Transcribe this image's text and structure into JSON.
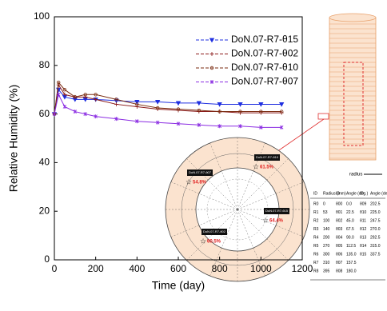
{
  "chart_data": {
    "type": "line",
    "x_label": "Time (day)",
    "y_label": "Relative Humidity (%)",
    "x": [
      0,
      20,
      50,
      100,
      150,
      200,
      300,
      400,
      500,
      600,
      700,
      800,
      900,
      1000,
      1100
    ],
    "series": [
      {
        "name": "DoN.07-R7-θ15",
        "color": "#1f2fe0",
        "marker": "triangle-down",
        "values": [
          60,
          70,
          67,
          66,
          66,
          66,
          65.5,
          65,
          65,
          64.5,
          64.5,
          64,
          64,
          64,
          64
        ]
      },
      {
        "name": "DoN.07-R7-θ02",
        "color": "#8b1a1a",
        "marker": "plus",
        "values": [
          60,
          72,
          68,
          67,
          67,
          66,
          64,
          63,
          62,
          61.5,
          61,
          61,
          60.5,
          60.5,
          60.5
        ]
      },
      {
        "name": "DoN.07-R7-θ10",
        "color": "#7a2b10",
        "marker": "circle",
        "values": [
          60,
          73,
          70,
          67,
          68,
          68,
          66,
          64,
          62.5,
          62,
          61.5,
          61,
          61,
          61,
          61
        ]
      },
      {
        "name": "DoN.07-R7-θ07",
        "color": "#8a2be2",
        "marker": "star",
        "values": [
          60,
          68,
          63,
          61,
          60,
          59,
          58,
          57,
          56.5,
          56,
          55.5,
          55,
          55,
          54.5,
          54.5
        ]
      }
    ],
    "xlim": [
      0,
      1200
    ],
    "xticks": [
      0,
      200,
      400,
      600,
      800,
      1000,
      1200
    ],
    "ylim": [
      0,
      100
    ],
    "yticks": [
      0,
      20,
      40,
      60,
      80,
      100
    ],
    "legend": "top-right"
  },
  "inset": {
    "annotations": [
      {
        "label": "DoN.07-R7-θ10",
        "value": "61.5%"
      },
      {
        "label": "DoN.07-R7-θ07",
        "value": "54.8%"
      },
      {
        "label": "DoN.07-R7-θ15",
        "value": "64.4%"
      },
      {
        "label": "DoN.07-R7-θ02",
        "value": "60.5%"
      }
    ],
    "radius_label": "radius",
    "table": {
      "header": [
        "ID",
        "Radius (mm)",
        "ID",
        "Angle (deg.)",
        "ID",
        "Angle (deg.)"
      ],
      "rows": [
        [
          "R0",
          "0",
          "θ00",
          "0.0",
          "θ09",
          "202.5"
        ],
        [
          "R1",
          "53",
          "θ01",
          "22.5",
          "θ10",
          "225.0"
        ],
        [
          "R2",
          "100",
          "θ02",
          "45.0",
          "θ11",
          "247.5"
        ],
        [
          "R3",
          "140",
          "θ03",
          "67.5",
          "θ12",
          "270.0"
        ],
        [
          "R4",
          "200",
          "θ04",
          "90.0",
          "θ13",
          "292.5"
        ],
        [
          "R5",
          "270",
          "θ05",
          "112.5",
          "θ14",
          "315.0"
        ],
        [
          "R6",
          "300",
          "θ06",
          "135.0",
          "θ15",
          "337.5"
        ],
        [
          "R7",
          "310",
          "θ07",
          "157.5",
          "",
          ""
        ],
        [
          "R8",
          "395",
          "θ08",
          "180.0",
          "",
          ""
        ]
      ]
    }
  }
}
